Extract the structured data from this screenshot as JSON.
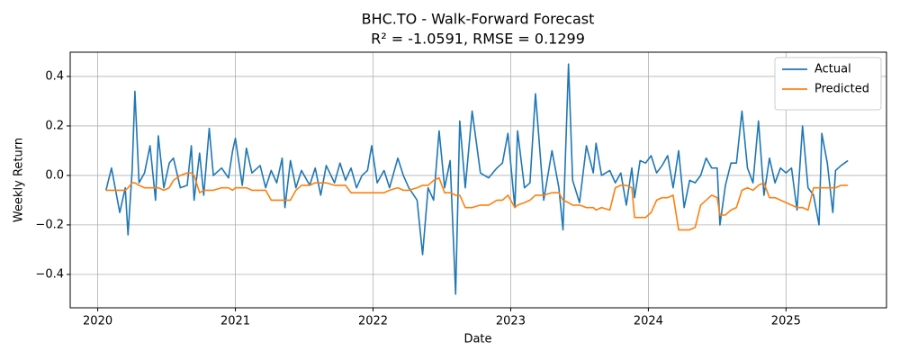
{
  "chart_data": {
    "type": "line",
    "title": "BHC.TO - Walk-Forward Forecast",
    "subtitle": "R² = -1.0591, RMSE = 0.1299",
    "x_label": "Date",
    "y_label": "Weekly Return",
    "grid": true,
    "legend": "upper right",
    "xlim": [
      2019.8,
      2025.73
    ],
    "ylim": [
      -0.535,
      0.498
    ],
    "xticks": [
      2020,
      2021,
      2022,
      2023,
      2024,
      2025
    ],
    "yticks": [
      {
        "value": -0.4,
        "label": "−0.4"
      },
      {
        "value": -0.2,
        "label": "−0.2"
      },
      {
        "value": 0,
        "label": "0.0"
      },
      0.2,
      0.4
    ],
    "x": [
      2020.06,
      2020.1,
      2020.16,
      2020.2,
      2020.22,
      2020.25,
      2020.27,
      2020.3,
      2020.34,
      2020.38,
      2020.42,
      2020.44,
      2020.48,
      2020.52,
      2020.55,
      2020.6,
      2020.65,
      2020.68,
      2020.7,
      2020.74,
      2020.77,
      2020.81,
      2020.84,
      2020.9,
      2020.95,
      2020.98,
      2021.0,
      2021.05,
      2021.08,
      2021.12,
      2021.18,
      2021.22,
      2021.26,
      2021.3,
      2021.34,
      2021.36,
      2021.4,
      2021.44,
      2021.48,
      2021.54,
      2021.58,
      2021.62,
      2021.66,
      2021.72,
      2021.76,
      2021.8,
      2021.84,
      2021.88,
      2021.92,
      2021.96,
      2021.99,
      2022.03,
      2022.08,
      2022.12,
      2022.18,
      2022.22,
      2022.26,
      2022.32,
      2022.36,
      2022.4,
      2022.44,
      2022.48,
      2022.52,
      2022.56,
      2022.6,
      2022.63,
      2022.67,
      2022.72,
      2022.78,
      2022.84,
      2022.9,
      2022.94,
      2022.98,
      2023.03,
      2023.05,
      2023.1,
      2023.14,
      2023.18,
      2023.24,
      2023.3,
      2023.35,
      2023.38,
      2023.42,
      2023.45,
      2023.5,
      2023.55,
      2023.6,
      2023.62,
      2023.66,
      2023.72,
      2023.76,
      2023.8,
      2023.84,
      2023.88,
      2023.9,
      2023.94,
      2023.98,
      2024.02,
      2024.06,
      2024.1,
      2024.14,
      2024.18,
      2024.22,
      2024.26,
      2024.3,
      2024.34,
      2024.38,
      2024.42,
      2024.46,
      2024.5,
      2024.52,
      2024.56,
      2024.6,
      2024.64,
      2024.68,
      2024.72,
      2024.76,
      2024.8,
      2024.84,
      2024.88,
      2024.92,
      2024.96,
      2025.0,
      2025.04,
      2025.08,
      2025.12,
      2025.16,
      2025.2,
      2025.24,
      2025.26,
      2025.3,
      2025.34,
      2025.36,
      2025.4,
      2025.45
    ],
    "series": [
      {
        "name": "Actual",
        "color": "#1f77b4",
        "values": [
          -0.06,
          0.03,
          -0.15,
          -0.05,
          -0.24,
          0.02,
          0.34,
          -0.03,
          0.01,
          0.12,
          -0.1,
          0.16,
          -0.05,
          0.05,
          0.07,
          -0.05,
          -0.04,
          0.12,
          -0.1,
          0.09,
          -0.08,
          0.19,
          0.0,
          0.03,
          -0.01,
          0.1,
          0.15,
          -0.04,
          0.11,
          0.01,
          0.04,
          -0.05,
          0.02,
          -0.03,
          0.07,
          -0.13,
          0.06,
          -0.05,
          0.02,
          -0.04,
          0.03,
          -0.08,
          0.04,
          -0.03,
          0.05,
          -0.02,
          0.03,
          -0.05,
          0.0,
          0.02,
          0.12,
          -0.03,
          0.02,
          -0.05,
          0.07,
          0.0,
          -0.05,
          -0.1,
          -0.32,
          -0.05,
          -0.1,
          0.18,
          -0.05,
          0.06,
          -0.48,
          0.22,
          -0.05,
          0.26,
          0.01,
          -0.01,
          0.03,
          0.05,
          0.17,
          -0.13,
          0.18,
          -0.05,
          -0.03,
          0.33,
          -0.1,
          0.1,
          -0.05,
          -0.22,
          0.45,
          -0.02,
          -0.11,
          0.12,
          0.01,
          0.13,
          0.0,
          0.02,
          -0.03,
          0.01,
          -0.12,
          0.03,
          -0.09,
          0.06,
          0.05,
          0.08,
          0.01,
          0.04,
          0.08,
          -0.05,
          0.1,
          -0.13,
          -0.02,
          -0.03,
          0.0,
          0.07,
          0.03,
          0.03,
          -0.2,
          -0.04,
          0.05,
          0.05,
          0.26,
          0.03,
          -0.03,
          0.22,
          -0.08,
          0.07,
          -0.03,
          0.03,
          0.01,
          0.03,
          -0.14,
          0.2,
          -0.05,
          -0.08,
          -0.2,
          0.17,
          0.05,
          -0.15,
          0.02,
          0.04,
          0.06
        ]
      },
      {
        "name": "Predicted",
        "color": "#ff7f0e",
        "values": [
          -0.06,
          -0.06,
          -0.06,
          -0.06,
          -0.05,
          -0.03,
          -0.03,
          -0.04,
          -0.05,
          -0.05,
          -0.05,
          -0.05,
          -0.06,
          -0.05,
          -0.02,
          0.0,
          0.01,
          0.01,
          0.0,
          -0.07,
          -0.06,
          -0.06,
          -0.06,
          -0.05,
          -0.05,
          -0.06,
          -0.05,
          -0.05,
          -0.05,
          -0.06,
          -0.06,
          -0.06,
          -0.1,
          -0.1,
          -0.1,
          -0.1,
          -0.1,
          -0.06,
          -0.04,
          -0.04,
          -0.03,
          -0.03,
          -0.03,
          -0.04,
          -0.04,
          -0.04,
          -0.07,
          -0.07,
          -0.07,
          -0.07,
          -0.07,
          -0.07,
          -0.07,
          -0.06,
          -0.05,
          -0.06,
          -0.06,
          -0.05,
          -0.04,
          -0.04,
          -0.02,
          -0.01,
          -0.07,
          -0.07,
          -0.08,
          -0.08,
          -0.13,
          -0.13,
          -0.12,
          -0.12,
          -0.1,
          -0.1,
          -0.08,
          -0.13,
          -0.12,
          -0.11,
          -0.1,
          -0.08,
          -0.08,
          -0.07,
          -0.07,
          -0.1,
          -0.11,
          -0.12,
          -0.12,
          -0.13,
          -0.13,
          -0.14,
          -0.13,
          -0.14,
          -0.05,
          -0.04,
          -0.04,
          -0.05,
          -0.17,
          -0.17,
          -0.17,
          -0.15,
          -0.1,
          -0.09,
          -0.09,
          -0.08,
          -0.22,
          -0.22,
          -0.22,
          -0.21,
          -0.12,
          -0.1,
          -0.08,
          -0.09,
          -0.16,
          -0.16,
          -0.14,
          -0.13,
          -0.06,
          -0.05,
          -0.06,
          -0.04,
          -0.03,
          -0.09,
          -0.09,
          -0.1,
          -0.11,
          -0.12,
          -0.13,
          -0.13,
          -0.14,
          -0.05,
          -0.05,
          -0.05,
          -0.05,
          -0.05,
          -0.05,
          -0.04,
          -0.04
        ]
      }
    ]
  }
}
